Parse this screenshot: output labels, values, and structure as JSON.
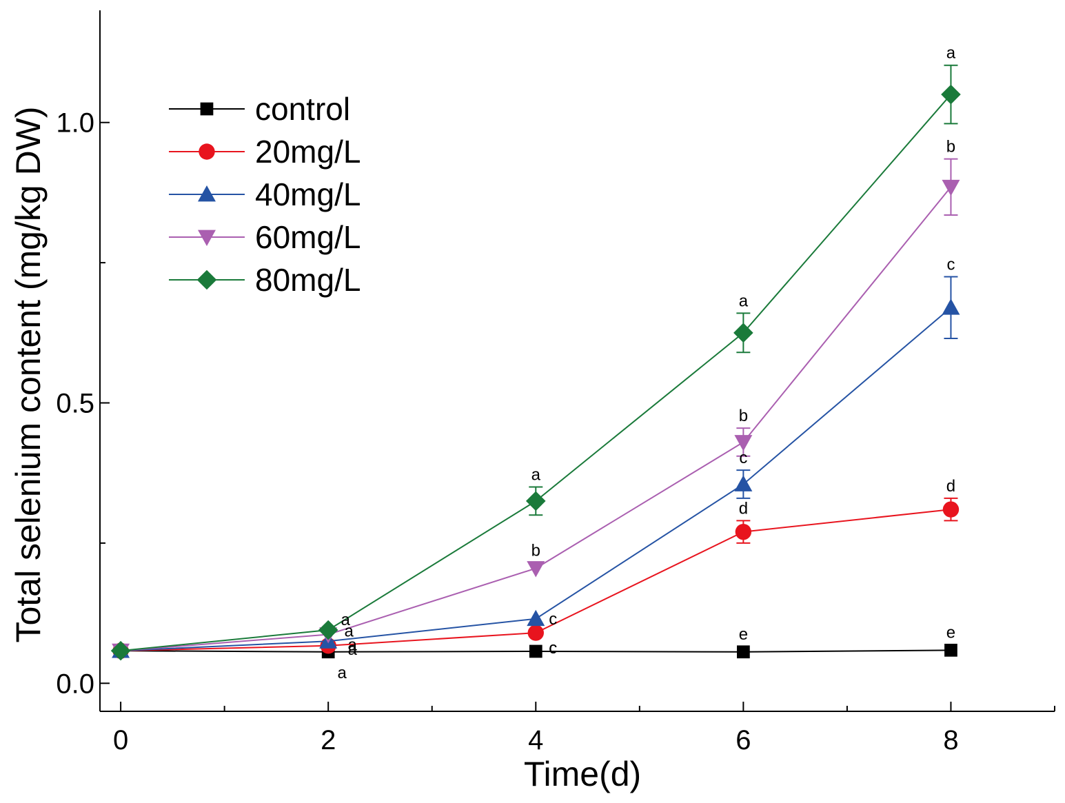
{
  "chart_data": {
    "type": "line",
    "xlabel": "Time(d)",
    "ylabel": "Total selenium content (mg/kg DW)",
    "xlim": [
      -0.2,
      9.0
    ],
    "ylim": [
      -0.05,
      1.2
    ],
    "x_ticks": [
      0,
      2,
      4,
      6,
      8
    ],
    "x_tick_labels": [
      "0",
      "2",
      "4",
      "6",
      "8"
    ],
    "x_minor_ticks": [
      1,
      3,
      5,
      7,
      9
    ],
    "y_ticks": [
      0.0,
      0.5,
      1.0
    ],
    "y_tick_labels": [
      "0.0",
      "0.5",
      "1.0"
    ],
    "y_minor_ticks": [
      0.25,
      0.75
    ],
    "grid": false,
    "legend_position": "top-left",
    "series": [
      {
        "name": "control",
        "color": "#000000",
        "marker": "square",
        "x": [
          0,
          2,
          4,
          6,
          8
        ],
        "y": [
          0.058,
          0.056,
          0.057,
          0.056,
          0.059
        ],
        "error": [
          0,
          0,
          0,
          0,
          0
        ],
        "labels": [
          "",
          "a",
          "c",
          "e",
          "e"
        ]
      },
      {
        "name": "20mg/L",
        "color": "#e8141e",
        "marker": "circle",
        "x": [
          0,
          2,
          4,
          6,
          8
        ],
        "y": [
          0.058,
          0.067,
          0.09,
          0.27,
          0.31
        ],
        "error": [
          0,
          0,
          0,
          0.02,
          0.02
        ],
        "labels": [
          "",
          "a",
          "c",
          "d",
          "d"
        ]
      },
      {
        "name": "40mg/L",
        "color": "#2553a4",
        "marker": "triangle-up",
        "x": [
          0,
          2,
          4,
          6,
          8
        ],
        "y": [
          0.058,
          0.075,
          0.115,
          0.355,
          0.67
        ],
        "error": [
          0,
          0,
          0,
          0.025,
          0.055
        ],
        "labels": [
          "",
          "a",
          "c",
          "c",
          "c"
        ]
      },
      {
        "name": "60mg/L",
        "color": "#aa5fb0",
        "marker": "triangle-down",
        "x": [
          0,
          2,
          4,
          6,
          8
        ],
        "y": [
          0.058,
          0.087,
          0.205,
          0.43,
          0.885
        ],
        "error": [
          0,
          0,
          0,
          0.025,
          0.05
        ],
        "labels": [
          "",
          "a",
          "b",
          "b",
          "b"
        ]
      },
      {
        "name": "80mg/L",
        "color": "#1a7a3a",
        "marker": "diamond",
        "x": [
          0,
          2,
          4,
          6,
          8
        ],
        "y": [
          0.058,
          0.095,
          0.325,
          0.625,
          1.05
        ],
        "error": [
          0,
          0,
          0.025,
          0.035,
          0.052
        ],
        "labels": [
          "",
          "a",
          "a",
          "a",
          "a"
        ]
      }
    ]
  }
}
